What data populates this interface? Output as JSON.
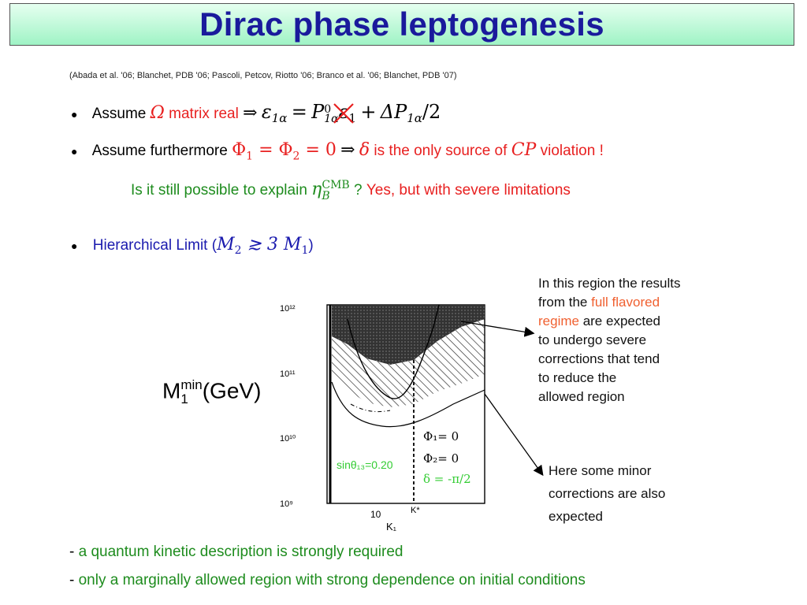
{
  "title": "Dirac phase leptogenesis",
  "reference": "(Abada et al. '06; Blanchet, PDB '06; Pascoli, Petcov, Riotto '06; Branco et al. '06; Blanchet, PDB '07)",
  "bullet1": {
    "prefix": "Assume",
    "omega": "Ω",
    "matrix_real": "matrix real",
    "implies": "⇒",
    "formula_a": "ε",
    "formula_a_sub": "1α",
    "formula_eq": "=",
    "P0": "P",
    "P0_sup": "0",
    "P0_sub": "1α",
    "crossed": "ε",
    "crossed_sub": "1",
    "plus": "+",
    "deltaP": "ΔP",
    "deltaP_sub": "1α",
    "over2": "/2"
  },
  "bullet2": {
    "prefix": "Assume furthermore",
    "phi_eq": "Φ",
    "phi1_sub": "1",
    "eq1": " = Φ",
    "phi2_sub": "2",
    "eq2": " = 0",
    "implies": "⇒",
    "delta": "δ",
    "middle": "is the only source of",
    "cp": "CP",
    "suffix": "violation !"
  },
  "question": {
    "green_text": "Is it still possible to explain",
    "eta": "η",
    "eta_sup": "CMB",
    "eta_sub": "B",
    "qmark": "?",
    "red_text": "Yes, but with severe limitations"
  },
  "bullet3": {
    "text": "Hierarchical Limit (",
    "formula": "M",
    "m2_sub": "2",
    "approx": " ≳ 3 M",
    "m1_sub": "1",
    "close": ")"
  },
  "ylabel": {
    "main": "M",
    "sup": "min",
    "sub": "1",
    "unit": "(GeV)"
  },
  "chart_data": {
    "type": "area",
    "y_scale": "log",
    "y_ticks": [
      "10¹²",
      "10¹¹",
      "10¹⁰",
      "10⁹"
    ],
    "x_scale": "log",
    "x_ticks": [
      "10"
    ],
    "x_marker": "K*",
    "xlabel": "K₁",
    "legend_lines": [
      "Φ₁= 0",
      "Φ₂= 0",
      "δ = -π/2"
    ],
    "param_label": "sinθ₁₃=0.20"
  },
  "annot_top": {
    "l1": "In this region the results",
    "l2a": "from the ",
    "l2b": "full flavored",
    "l3a": "regime",
    "l3b": " are expected",
    "l4": "to undergo severe",
    "l5": "corrections that tend",
    "l6": "to reduce the",
    "l7": "allowed region"
  },
  "annot_bottom": {
    "l1": "Here some minor",
    "l2": "corrections are also",
    "l3": "expected"
  },
  "footer": {
    "line1_dash": "- ",
    "line1": "a quantum kinetic description is strongly required",
    "line2_dash": "- ",
    "line2": "only a marginally allowed region with strong dependence on initial conditions"
  }
}
